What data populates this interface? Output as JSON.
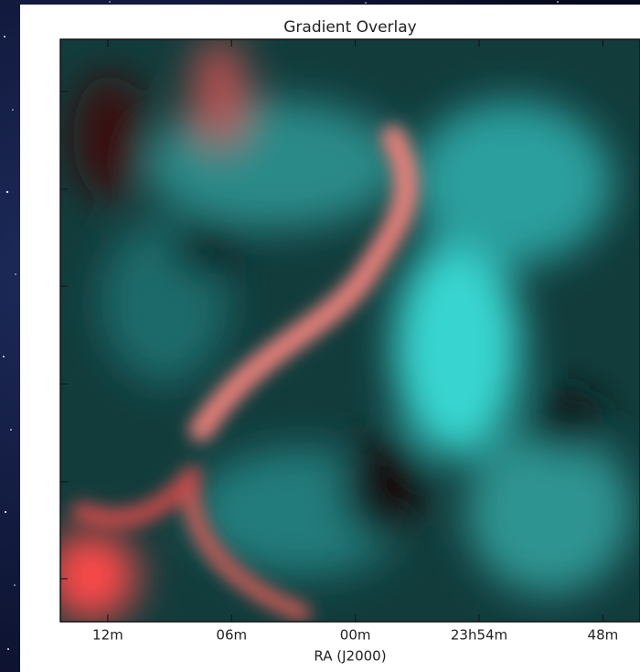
{
  "chart_data": {
    "type": "image",
    "title": "Gradient Overlay",
    "xlabel": "RA (J2000)",
    "xlim": [
      14.3,
      -13.8
    ],
    "xticks": [
      {
        "value": 12,
        "label": "12m"
      },
      {
        "value": 6,
        "label": "06m"
      },
      {
        "value": 0,
        "label": "00m"
      },
      {
        "value": -6,
        "label": "23h54m"
      },
      {
        "value": -12,
        "label": "48m"
      }
    ]
  }
}
